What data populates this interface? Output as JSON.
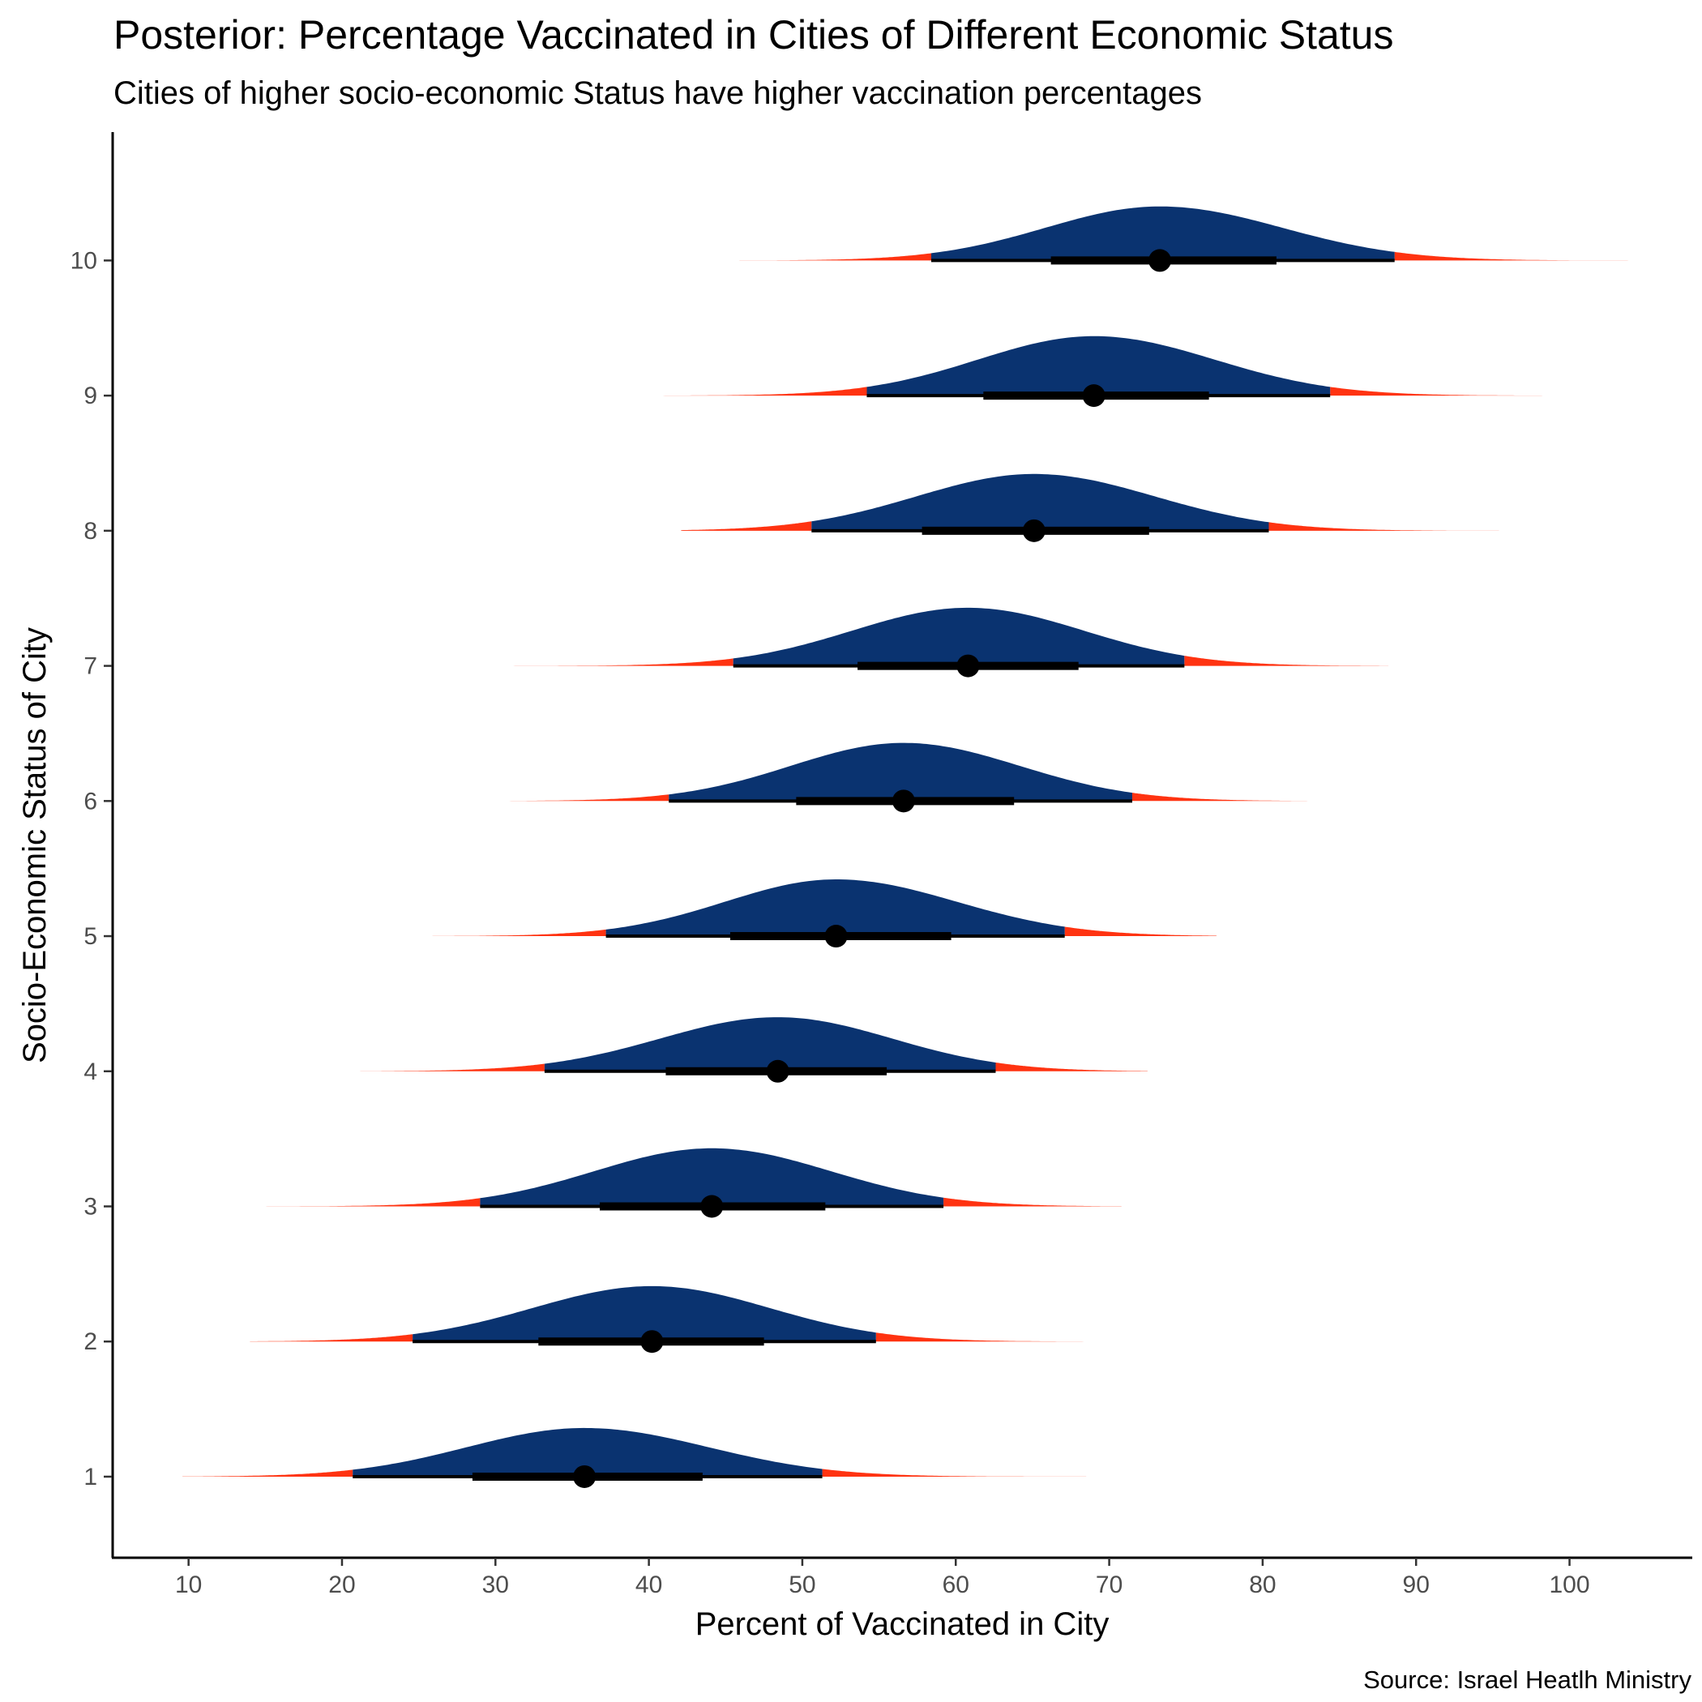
{
  "chart_data": {
    "type": "ridgeline",
    "title": "Posterior: Percentage Vaccinated in Cities of Different Economic Status",
    "subtitle": "Cities of higher socio-economic Status have higher vaccination percentages",
    "xlabel": "Percent of Vaccinated in City",
    "ylabel": "Socio-Economic Status of City",
    "caption": "Source: Israel Heatlh Ministry",
    "xlim": [
      5,
      108
    ],
    "ylim": [
      0.4,
      10.95
    ],
    "x_ticks": [
      10,
      20,
      30,
      40,
      50,
      60,
      70,
      80,
      90,
      100
    ],
    "y_ticks": [
      1,
      2,
      3,
      4,
      5,
      6,
      7,
      8,
      9,
      10
    ],
    "grid": false,
    "colors": {
      "inner_interval": "#0a3370",
      "tails": "#ff3311",
      "point_interval": "#000000"
    },
    "series": [
      {
        "name": "1",
        "median": 35.8,
        "ci66": [
          28.5,
          43.5
        ],
        "ci95": [
          20.7,
          51.3
        ],
        "range": [
          9.6,
          68.5
        ],
        "peak_height": 0.36
      },
      {
        "name": "2",
        "median": 40.2,
        "ci66": [
          32.8,
          47.5
        ],
        "ci95": [
          24.6,
          54.8
        ],
        "range": [
          14.0,
          72.5
        ],
        "peak_height": 0.41
      },
      {
        "name": "3",
        "median": 44.1,
        "ci66": [
          36.8,
          51.5
        ],
        "ci95": [
          29.0,
          59.2
        ],
        "range": [
          13.6,
          70.8
        ],
        "peak_height": 0.43
      },
      {
        "name": "4",
        "median": 48.4,
        "ci66": [
          41.1,
          55.5
        ],
        "ci95": [
          33.2,
          62.6
        ],
        "range": [
          20.5,
          72.5
        ],
        "peak_height": 0.4
      },
      {
        "name": "5",
        "median": 52.2,
        "ci66": [
          45.3,
          59.7
        ],
        "ci95": [
          37.2,
          67.1
        ],
        "range": [
          24.1,
          77.0
        ],
        "peak_height": 0.42
      },
      {
        "name": "6",
        "median": 56.6,
        "ci66": [
          49.6,
          63.8
        ],
        "ci95": [
          41.3,
          71.5
        ],
        "range": [
          25.3,
          84.1
        ],
        "peak_height": 0.43
      },
      {
        "name": "7",
        "median": 60.8,
        "ci66": [
          53.6,
          68.0
        ],
        "ci95": [
          45.5,
          74.9
        ],
        "range": [
          29.1,
          88.2
        ],
        "peak_height": 0.43
      },
      {
        "name": "8",
        "median": 65.1,
        "ci66": [
          57.8,
          72.6
        ],
        "ci95": [
          50.6,
          80.4
        ],
        "range": [
          42.1,
          95.4
        ],
        "peak_height": 0.42
      },
      {
        "name": "9",
        "median": 69.0,
        "ci66": [
          61.8,
          76.5
        ],
        "ci95": [
          54.2,
          84.4
        ],
        "range": [
          35.2,
          99.0
        ],
        "peak_height": 0.44
      },
      {
        "name": "10",
        "median": 73.3,
        "ci66": [
          66.2,
          80.9
        ],
        "ci95": [
          58.4,
          88.6
        ],
        "range": [
          45.9,
          104.0
        ],
        "peak_height": 0.4
      }
    ]
  }
}
